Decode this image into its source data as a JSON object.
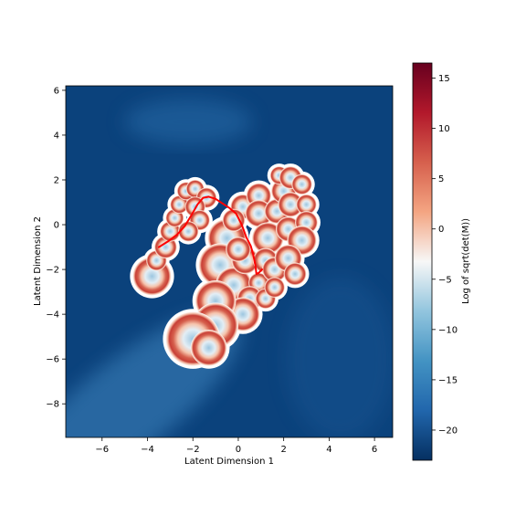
{
  "chart_data": {
    "type": "heatmap",
    "title": "",
    "xlabel": "Latent Dimension 1",
    "ylabel": "Latent Dimension 2",
    "xlim": [
      -7.6,
      6.8
    ],
    "ylim": [
      -9.5,
      6.2
    ],
    "xticks": [
      -6,
      -4,
      -2,
      0,
      2,
      4,
      6
    ],
    "yticks": [
      -8,
      -6,
      -4,
      -2,
      0,
      2,
      4,
      6
    ],
    "colorbar": {
      "label": "Log of sqrt(det(M))",
      "range": [
        -23,
        16.5
      ],
      "ticks": [
        -20,
        -15,
        -10,
        -5,
        0,
        5,
        10,
        15
      ],
      "colormap": "RdBu_r",
      "colors": [
        "#053061",
        "#2166ac",
        "#4393c3",
        "#92c5de",
        "#f7f7f7",
        "#f4a582",
        "#d6604d",
        "#b2182b",
        "#67001f"
      ]
    },
    "background_color": "#0b427c",
    "blobs": [
      {
        "x": -3.8,
        "y": -2.3,
        "r": 0.85,
        "v": 0.35
      },
      {
        "x": -3.6,
        "y": -1.6,
        "r": 0.45,
        "v": 0.45
      },
      {
        "x": -3.2,
        "y": -1.0,
        "r": 0.5,
        "v": 0.45
      },
      {
        "x": -3.0,
        "y": -0.3,
        "r": 0.45,
        "v": 0.45
      },
      {
        "x": -2.8,
        "y": 0.3,
        "r": 0.4,
        "v": 0.45
      },
      {
        "x": -2.6,
        "y": 0.9,
        "r": 0.4,
        "v": 0.45
      },
      {
        "x": -2.3,
        "y": 1.5,
        "r": 0.4,
        "v": 0.45
      },
      {
        "x": -1.9,
        "y": 1.6,
        "r": 0.4,
        "v": 0.45
      },
      {
        "x": -1.4,
        "y": 1.2,
        "r": 0.45,
        "v": 0.45
      },
      {
        "x": -1.9,
        "y": 0.8,
        "r": 0.45,
        "v": 0.45
      },
      {
        "x": -1.7,
        "y": 0.2,
        "r": 0.45,
        "v": 0.45
      },
      {
        "x": -2.2,
        "y": -0.3,
        "r": 0.45,
        "v": 0.45
      },
      {
        "x": -0.5,
        "y": -0.6,
        "r": 0.85,
        "v": 0.35
      },
      {
        "x": -0.8,
        "y": -1.8,
        "r": 0.95,
        "v": 0.3
      },
      {
        "x": -0.2,
        "y": -2.7,
        "r": 0.8,
        "v": 0.35
      },
      {
        "x": 0.3,
        "y": -1.6,
        "r": 0.6,
        "v": 0.4
      },
      {
        "x": 0.2,
        "y": 0.8,
        "r": 0.55,
        "v": 0.45
      },
      {
        "x": 0.9,
        "y": 1.3,
        "r": 0.55,
        "v": 0.45
      },
      {
        "x": 0.9,
        "y": 0.5,
        "r": 0.6,
        "v": 0.42
      },
      {
        "x": 1.3,
        "y": -0.6,
        "r": 0.7,
        "v": 0.4
      },
      {
        "x": 1.2,
        "y": -1.6,
        "r": 0.55,
        "v": 0.42
      },
      {
        "x": 0.9,
        "y": -2.6,
        "r": 0.45,
        "v": 0.45
      },
      {
        "x": 0.5,
        "y": -3.3,
        "r": 0.55,
        "v": 0.42
      },
      {
        "x": 0.2,
        "y": -4.0,
        "r": 0.75,
        "v": 0.38
      },
      {
        "x": 1.2,
        "y": -3.3,
        "r": 0.45,
        "v": 0.45
      },
      {
        "x": 1.6,
        "y": -2.0,
        "r": 0.55,
        "v": 0.42
      },
      {
        "x": 1.7,
        "y": 0.6,
        "r": 0.55,
        "v": 0.42
      },
      {
        "x": 2.0,
        "y": 1.5,
        "r": 0.55,
        "v": 0.42
      },
      {
        "x": 1.8,
        "y": 2.2,
        "r": 0.4,
        "v": 0.45
      },
      {
        "x": 2.3,
        "y": 2.1,
        "r": 0.5,
        "v": 0.45
      },
      {
        "x": 2.8,
        "y": 1.8,
        "r": 0.45,
        "v": 0.45
      },
      {
        "x": 2.3,
        "y": 0.9,
        "r": 0.55,
        "v": 0.42
      },
      {
        "x": 3.0,
        "y": 0.9,
        "r": 0.45,
        "v": 0.45
      },
      {
        "x": 2.2,
        "y": -0.2,
        "r": 0.55,
        "v": 0.42
      },
      {
        "x": 3.0,
        "y": 0.1,
        "r": 0.5,
        "v": 0.45
      },
      {
        "x": 2.8,
        "y": -0.7,
        "r": 0.65,
        "v": 0.4
      },
      {
        "x": 2.2,
        "y": -1.5,
        "r": 0.6,
        "v": 0.42
      },
      {
        "x": 2.5,
        "y": -2.2,
        "r": 0.5,
        "v": 0.45
      },
      {
        "x": 1.6,
        "y": -2.8,
        "r": 0.45,
        "v": 0.45
      },
      {
        "x": -1.0,
        "y": -3.4,
        "r": 0.9,
        "v": 0.32
      },
      {
        "x": -1.0,
        "y": -4.5,
        "r": 1.0,
        "v": 0.3
      },
      {
        "x": -2.0,
        "y": -5.1,
        "r": 1.2,
        "v": 0.28
      },
      {
        "x": -1.3,
        "y": -5.5,
        "r": 0.8,
        "v": 0.35
      },
      {
        "x": 0.0,
        "y": -1.1,
        "r": 0.55,
        "v": 0.42
      },
      {
        "x": -0.2,
        "y": 0.2,
        "r": 0.5,
        "v": 0.45
      }
    ],
    "series": [
      {
        "type": "line",
        "color": "#ff0000",
        "x": [
          -3.5,
          -3.1,
          -2.7,
          -2.35,
          -2.05,
          -1.8,
          -1.55,
          -1.3,
          -1.0,
          -0.7,
          -0.4,
          -0.1,
          0.15,
          0.35,
          0.55,
          0.65,
          0.75,
          0.8,
          0.9,
          1.05
        ],
        "y": [
          -1.0,
          -0.75,
          -0.45,
          -0.05,
          0.45,
          0.9,
          1.2,
          1.25,
          1.15,
          0.95,
          0.75,
          0.5,
          0.0,
          -0.55,
          -0.95,
          -1.3,
          -1.8,
          -2.2,
          -2.15,
          -2.0
        ]
      }
    ]
  }
}
